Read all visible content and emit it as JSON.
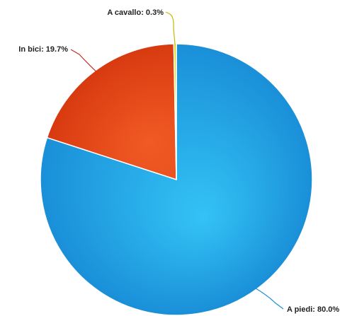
{
  "chart_data": {
    "type": "pie",
    "title": "",
    "start_angle_deg": 0,
    "direction": "clockwise",
    "slices": [
      {
        "label": "A piedi",
        "value": 80.0,
        "display": "A piedi: 80.0%",
        "color": "#1a8fd8",
        "highlight": "#33c3f5",
        "connector_color": "#1a8fd8"
      },
      {
        "label": "In bici",
        "value": 19.7,
        "display": "In bici: 19.7%",
        "color": "#d83a10",
        "highlight": "#f05a24",
        "connector_color": "#c0302a"
      },
      {
        "label": "A cavallo",
        "value": 0.3,
        "display": "A cavallo: 0.3%",
        "color": "#d8d81a",
        "highlight": "#f0f03a",
        "connector_color": "#c8b800"
      }
    ]
  }
}
